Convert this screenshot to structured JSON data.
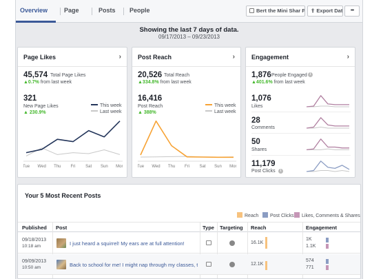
{
  "nav": {
    "tabs": [
      "Overview",
      "Page",
      "Posts",
      "People"
    ],
    "page_button": "Bert the Mini Shar Pei",
    "export_button": "Export Data",
    "more_button": "•••"
  },
  "banner": {
    "title": "Showing the last 7 days of data.",
    "range": "09/17/2013 – 09/23/2013"
  },
  "page_likes": {
    "title": "Page Likes",
    "total": "45,574",
    "total_label": "Total Page Likes",
    "total_change": "▲0.7%",
    "total_change_suffix": "from last week",
    "new": "321",
    "new_label": "New Page Likes",
    "new_change": "▲ 230.9%",
    "legend_this": "This week",
    "legend_last": "Last week",
    "days": [
      "Tue",
      "Wed",
      "Thu",
      "Fri",
      "Sat",
      "Sun",
      "Mon"
    ],
    "this_week": [
      12,
      19,
      40,
      35,
      58,
      45,
      78
    ],
    "last_week": [
      5,
      22,
      8,
      12,
      10,
      18,
      8
    ]
  },
  "post_reach": {
    "title": "Post Reach",
    "total": "20,526",
    "total_label": "Total Reach",
    "total_change": "▲334.8%",
    "total_change_suffix": "from last week",
    "value": "16,416",
    "value_label": "Post Reach",
    "value_change": "▲ 388%",
    "legend_this": "This week",
    "legend_last": "Last week",
    "days": [
      "Tue",
      "Wed",
      "Thu",
      "Fri",
      "Sat",
      "Sun",
      "Mon"
    ],
    "this_week": [
      1500,
      16416,
      5600,
      700,
      600,
      500,
      500
    ],
    "last_week": [
      600,
      700,
      800,
      900,
      700,
      600,
      700
    ]
  },
  "engagement": {
    "title": "Engagement",
    "people": "1,876",
    "people_label": "People Engaged",
    "people_change": "▲401.6%",
    "people_change_suffix": "from last week",
    "metrics": [
      {
        "value": "1,076",
        "label": "Likes",
        "this_week": [
          2,
          3,
          18,
          6,
          5,
          5,
          5
        ],
        "last_week": [
          2,
          2,
          3,
          3,
          2,
          2,
          2
        ]
      },
      {
        "value": "28",
        "label": "Comments",
        "this_week": [
          2,
          3,
          12,
          5,
          4,
          4,
          4
        ],
        "last_week": [
          2,
          2,
          3,
          2,
          2,
          2,
          2
        ]
      },
      {
        "value": "50",
        "label": "Shares",
        "this_week": [
          2,
          3,
          14,
          5,
          5,
          4,
          4
        ],
        "last_week": [
          2,
          2,
          2,
          3,
          2,
          2,
          2
        ]
      },
      {
        "value": "11,179",
        "label": "Post Clicks",
        "this_week": [
          2,
          3,
          12,
          6,
          5,
          8,
          4
        ],
        "last_week": [
          2,
          2,
          3,
          3,
          2,
          3,
          2
        ]
      }
    ]
  },
  "posts": {
    "title": "Your 5 Most Recent Posts",
    "legend": [
      "Reach",
      "Post Clicks",
      "Likes, Comments & Shares"
    ],
    "columns": [
      "Published",
      "Post",
      "Type",
      "Targeting",
      "Reach",
      "Engagement"
    ],
    "rows": [
      {
        "date": "09/18/2013",
        "time": "10:18 am",
        "text": "I just heard a squirrel! My ears are at full attention!",
        "reach": "16.1K",
        "reach_fraction": 1.0,
        "eng_clicks": "1K",
        "eng_likes": "1.1K"
      },
      {
        "date": "09/09/2013",
        "time": "10:50 am",
        "text": "Back to school for me! I might nap through my classes, though",
        "reach": "12.1K",
        "reach_fraction": 0.75,
        "eng_clicks": "574",
        "eng_likes": "771"
      }
    ]
  },
  "colors": {
    "accent": "#3b5998",
    "this_week_line": "#23355a",
    "last_week_line": "#c8c8c8",
    "reach_orange": "#f7a233",
    "post_clicks": "#8b9dc3",
    "likes_purple": "#b07fa0",
    "positive": "#42b72a"
  }
}
